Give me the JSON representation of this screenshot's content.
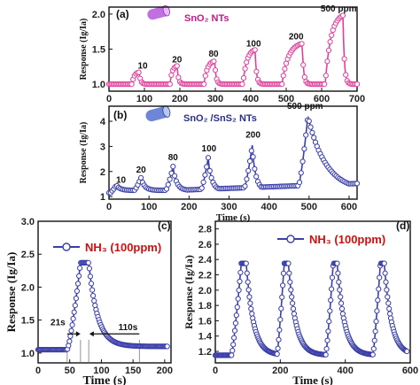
{
  "chart_data": [
    {
      "panel_label": "(a)",
      "type": "line",
      "legend": "SnO₂ NTs",
      "series_color": "#e0409c",
      "ylabel": "Response (Ig/Ia)",
      "xlim": [
        0,
        700
      ],
      "ylim": [
        0.9,
        2.1
      ],
      "xticks": [
        "0",
        "100",
        "200",
        "300",
        "400",
        "500",
        "600",
        "700"
      ],
      "yticks": [
        "1.0",
        "1.5",
        "2.0"
      ],
      "data_labels": [
        {
          "text": "10",
          "x": 95,
          "y": 1.22
        },
        {
          "text": "20",
          "x": 192,
          "y": 1.31
        },
        {
          "text": "80",
          "x": 295,
          "y": 1.39
        },
        {
          "text": "100",
          "x": 408,
          "y": 1.54
        },
        {
          "text": "200",
          "x": 528,
          "y": 1.64
        },
        {
          "text": "500 ppm",
          "x": 648,
          "y": 2.04
        }
      ],
      "pulses": [
        {
          "start": 65,
          "end": 85,
          "peak": 1.17
        },
        {
          "start": 172,
          "end": 192,
          "peak": 1.26
        },
        {
          "start": 268,
          "end": 298,
          "peak": 1.33
        },
        {
          "start": 378,
          "end": 412,
          "peak": 1.49
        },
        {
          "start": 488,
          "end": 545,
          "peak": 1.58
        },
        {
          "start": 610,
          "end": 660,
          "peak": 1.98
        }
      ]
    },
    {
      "panel_label": "(b)",
      "type": "line",
      "legend": "SnO₂ /SnS₂ NTs",
      "series_color": "#3a3ea8",
      "ylabel": "Response (Ig/Ia)",
      "xlabel": "Time (s)",
      "xlim": [
        0,
        620
      ],
      "ylim": [
        0.9,
        4.6
      ],
      "xticks": [
        "0",
        "100",
        "200",
        "300",
        "400",
        "500",
        "600"
      ],
      "yticks": [
        "1",
        "2",
        "3",
        "4"
      ],
      "data_labels": [
        {
          "text": "10",
          "x": 30,
          "y": 1.55
        },
        {
          "text": "20",
          "x": 80,
          "y": 1.95
        },
        {
          "text": "80",
          "x": 160,
          "y": 2.45
        },
        {
          "text": "100",
          "x": 250,
          "y": 2.8
        },
        {
          "text": "200",
          "x": 360,
          "y": 3.35
        },
        {
          "text": "500 ppm",
          "x": 490,
          "y": 4.5
        }
      ],
      "pulses": [
        {
          "start": 5,
          "end": 18,
          "peak": 1.45
        },
        {
          "start": 60,
          "end": 80,
          "peak": 1.75
        },
        {
          "start": 140,
          "end": 160,
          "peak": 2.2
        },
        {
          "start": 228,
          "end": 248,
          "peak": 2.55
        },
        {
          "start": 335,
          "end": 358,
          "peak": 3.05
        },
        {
          "start": 470,
          "end": 497,
          "peak": 4.2
        }
      ]
    },
    {
      "panel_label": "(c)",
      "type": "line",
      "legend": "NH₃ (100ppm)",
      "series_color": "#3a3ea8",
      "ylabel": "Response (Ig/Ia)",
      "xlabel": "Time (s)",
      "xlim": [
        0,
        210
      ],
      "ylim": [
        0.85,
        3.0
      ],
      "xticks": [
        "0",
        "50",
        "100",
        "150",
        "200"
      ],
      "yticks": [
        "1.0",
        "1.5",
        "2.0",
        "2.5",
        "3.0"
      ],
      "annotations": [
        {
          "text": "21s",
          "x": 43,
          "y": 1.42
        },
        {
          "text": "110s",
          "x": 142,
          "y": 1.35
        }
      ],
      "guides_x": [
        46,
        67,
        80,
        160
      ],
      "pulse": {
        "start": 46,
        "peak_time": 67,
        "end": 80,
        "base": 1.05,
        "peak": 2.37,
        "recovered": 1.1
      }
    },
    {
      "panel_label": "(d)",
      "type": "line",
      "legend": "NH₃ (100ppm)",
      "series_color": "#3a3ea8",
      "ylabel": "Response (Ig/Ia)",
      "xlabel": "Time (s)",
      "xlim": [
        0,
        600
      ],
      "ylim": [
        1.05,
        2.9
      ],
      "xticks": [
        "0",
        "200",
        "400",
        "600"
      ],
      "yticks": [
        "1.2",
        "1.4",
        "1.6",
        "1.8",
        "2.0",
        "2.2",
        "2.4",
        "2.6",
        "2.8"
      ],
      "cycles": [
        {
          "start": 50,
          "peak_time": 80,
          "end": 95
        },
        {
          "start": 190,
          "peak_time": 212,
          "end": 225
        },
        {
          "start": 340,
          "peak_time": 363,
          "end": 375
        },
        {
          "start": 485,
          "peak_time": 508,
          "end": 520
        }
      ],
      "base": 1.15,
      "peak": 2.35
    }
  ]
}
